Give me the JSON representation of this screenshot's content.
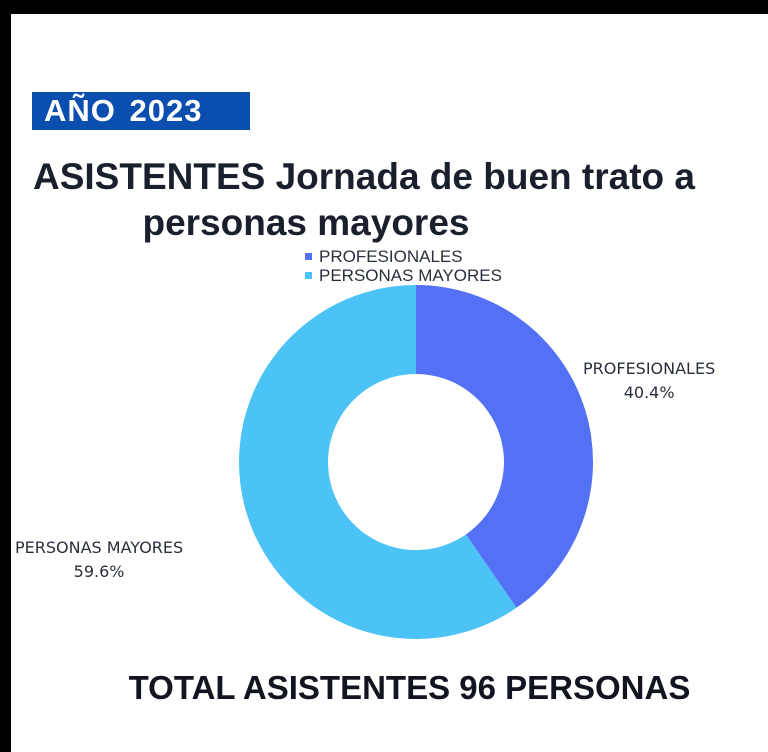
{
  "year_badge": "AÑO 2023",
  "title": {
    "line1": "ASISTENTES  Jornada de buen trato a",
    "line2": "personas mayores"
  },
  "legend": [
    {
      "label": "PROFESIONALES",
      "color": "#5470f5"
    },
    {
      "label": "PERSONAS MAYORES",
      "color": "#4bc3f7"
    }
  ],
  "chart_data": {
    "type": "pie",
    "variant": "donut",
    "title": "ASISTENTES  Jornada de buen trato a personas mayores",
    "legend_position": "top",
    "slices": [
      {
        "label": "PROFESIONALES",
        "value": 40.4,
        "value_label": "40.4%",
        "color": "#5470f5"
      },
      {
        "label": "PERSONAS MAYORES",
        "value": 59.6,
        "value_label": "59.6%",
        "color": "#4bc3f7"
      }
    ]
  },
  "total_text": "TOTAL ASISTENTES 96 PERSONAS"
}
